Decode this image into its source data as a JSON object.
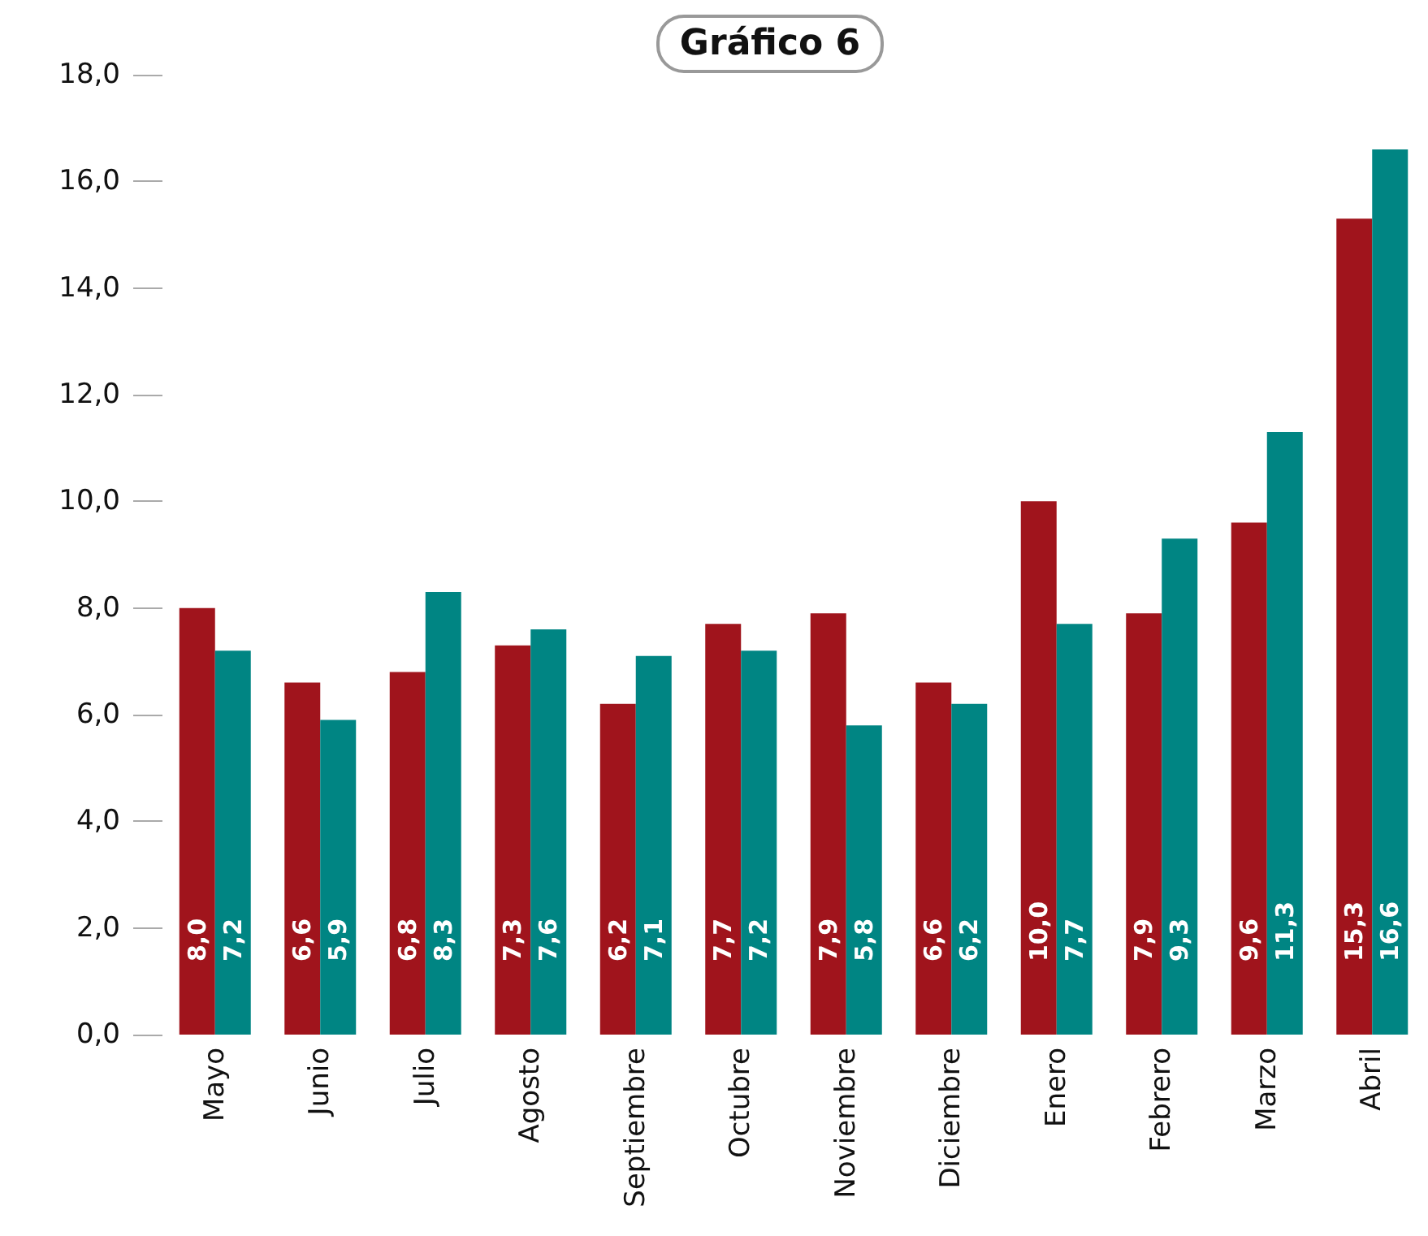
{
  "chart_data": {
    "type": "bar",
    "title": "Gráfico 6",
    "categories": [
      "Mayo",
      "Junio",
      "Julio",
      "Agosto",
      "Septiembre",
      "Octubre",
      "Noviembre",
      "Diciembre",
      "Enero",
      "Febrero",
      "Marzo",
      "Abril"
    ],
    "series": [
      {
        "color": "#a0141c",
        "values": [
          8.0,
          6.6,
          6.8,
          7.3,
          6.2,
          7.7,
          7.9,
          6.6,
          10.0,
          7.9,
          9.6,
          15.3
        ],
        "value_labels": [
          "8,0",
          "6,6",
          "6,8",
          "7,3",
          "6,2",
          "7,7",
          "7,9",
          "6,6",
          "10,0",
          "7,9",
          "9,6",
          "15,3"
        ]
      },
      {
        "color": "#008583",
        "values": [
          7.2,
          5.9,
          8.3,
          7.6,
          7.1,
          7.2,
          5.8,
          6.2,
          7.7,
          9.3,
          11.3,
          16.6
        ],
        "value_labels": [
          "7,2",
          "5,9",
          "8,3",
          "7,6",
          "7,1",
          "7,2",
          "5,8",
          "6,2",
          "7,7",
          "9,3",
          "11,3",
          "16,6"
        ]
      }
    ],
    "ylim": [
      0,
      18
    ],
    "yticks": [
      {
        "value": 0,
        "label": "0,0"
      },
      {
        "value": 2,
        "label": "2,0"
      },
      {
        "value": 4,
        "label": "4,0"
      },
      {
        "value": 6,
        "label": "6,0"
      },
      {
        "value": 8,
        "label": "8,0"
      },
      {
        "value": 10,
        "label": "10,0"
      },
      {
        "value": 12,
        "label": "12,0"
      },
      {
        "value": 14,
        "label": "14,0"
      },
      {
        "value": 16,
        "label": "16,0"
      },
      {
        "value": 18,
        "label": "18,0"
      }
    ],
    "grid": false
  }
}
